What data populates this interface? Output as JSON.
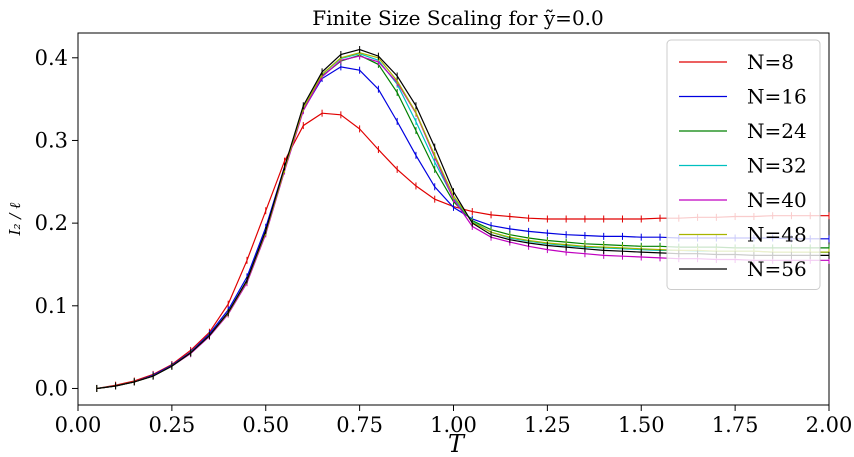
{
  "chart_data": {
    "type": "line",
    "title": "Finite Size Scaling for ỹ=0.0",
    "xlabel": "T",
    "ylabel": "I₂ / ℓ",
    "xlim": [
      0.0,
      2.0
    ],
    "ylim": [
      -0.02,
      0.43
    ],
    "xticks": [
      "0.00",
      "0.25",
      "0.50",
      "0.75",
      "1.00",
      "1.25",
      "1.50",
      "1.75",
      "2.00"
    ],
    "yticks": [
      "0.0",
      "0.1",
      "0.2",
      "0.3",
      "0.4"
    ],
    "legend_position": "upper-right",
    "grid": false,
    "x": [
      0.05,
      0.1,
      0.15,
      0.2,
      0.25,
      0.3,
      0.35,
      0.4,
      0.45,
      0.5,
      0.55,
      0.6,
      0.65,
      0.7,
      0.75,
      0.8,
      0.85,
      0.9,
      0.95,
      1.0,
      1.05,
      1.1,
      1.15,
      1.2,
      1.25,
      1.3,
      1.35,
      1.4,
      1.45,
      1.5,
      1.55,
      1.6,
      1.65,
      1.7,
      1.75,
      1.8,
      1.85,
      1.9,
      1.95,
      2.0
    ],
    "series": [
      {
        "name": "N=8",
        "color": "#e00000",
        "values": [
          0.0,
          0.004,
          0.009,
          0.017,
          0.029,
          0.046,
          0.068,
          0.102,
          0.155,
          0.215,
          0.275,
          0.318,
          0.333,
          0.331,
          0.314,
          0.289,
          0.265,
          0.245,
          0.229,
          0.22,
          0.214,
          0.21,
          0.208,
          0.206,
          0.205,
          0.205,
          0.205,
          0.205,
          0.205,
          0.205,
          0.206,
          0.206,
          0.207,
          0.207,
          0.208,
          0.208,
          0.209,
          0.209,
          0.209,
          0.209
        ]
      },
      {
        "name": "N=16",
        "color": "#0000e0",
        "values": [
          0.0,
          0.003,
          0.008,
          0.016,
          0.028,
          0.044,
          0.066,
          0.095,
          0.135,
          0.195,
          0.268,
          0.337,
          0.375,
          0.389,
          0.385,
          0.362,
          0.323,
          0.282,
          0.244,
          0.219,
          0.205,
          0.197,
          0.193,
          0.19,
          0.188,
          0.186,
          0.185,
          0.184,
          0.184,
          0.183,
          0.183,
          0.182,
          0.182,
          0.182,
          0.182,
          0.182,
          0.182,
          0.181,
          0.181,
          0.181
        ]
      },
      {
        "name": "N=24",
        "color": "#008000",
        "values": [
          0.0,
          0.003,
          0.008,
          0.015,
          0.027,
          0.043,
          0.064,
          0.092,
          0.131,
          0.19,
          0.265,
          0.338,
          0.378,
          0.396,
          0.403,
          0.392,
          0.358,
          0.312,
          0.265,
          0.226,
          0.203,
          0.192,
          0.186,
          0.182,
          0.179,
          0.177,
          0.175,
          0.174,
          0.173,
          0.172,
          0.172,
          0.171,
          0.171,
          0.171,
          0.17,
          0.17,
          0.17,
          0.17,
          0.17,
          0.17
        ]
      },
      {
        "name": "N=32",
        "color": "#00c0c0",
        "values": [
          0.0,
          0.003,
          0.008,
          0.015,
          0.027,
          0.043,
          0.064,
          0.091,
          0.13,
          0.189,
          0.265,
          0.339,
          0.38,
          0.399,
          0.405,
          0.397,
          0.368,
          0.323,
          0.274,
          0.23,
          0.202,
          0.189,
          0.182,
          0.178,
          0.175,
          0.173,
          0.171,
          0.17,
          0.169,
          0.168,
          0.167,
          0.167,
          0.166,
          0.166,
          0.166,
          0.166,
          0.165,
          0.165,
          0.165,
          0.165
        ]
      },
      {
        "name": "N=40",
        "color": "#c000c0",
        "values": [
          0.0,
          0.003,
          0.008,
          0.015,
          0.027,
          0.042,
          0.063,
          0.09,
          0.128,
          0.187,
          0.263,
          0.336,
          0.377,
          0.397,
          0.402,
          0.395,
          0.37,
          0.333,
          0.28,
          0.229,
          0.196,
          0.183,
          0.177,
          0.172,
          0.168,
          0.165,
          0.163,
          0.161,
          0.16,
          0.159,
          0.158,
          0.157,
          0.157,
          0.156,
          0.156,
          0.155,
          0.155,
          0.155,
          0.155,
          0.155
        ]
      },
      {
        "name": "N=48",
        "color": "#a8b400",
        "values": [
          0.0,
          0.003,
          0.008,
          0.015,
          0.027,
          0.043,
          0.064,
          0.091,
          0.13,
          0.189,
          0.265,
          0.339,
          0.38,
          0.4,
          0.406,
          0.4,
          0.372,
          0.334,
          0.282,
          0.233,
          0.201,
          0.189,
          0.183,
          0.179,
          0.176,
          0.174,
          0.172,
          0.171,
          0.17,
          0.169,
          0.168,
          0.167,
          0.167,
          0.166,
          0.166,
          0.166,
          0.165,
          0.165,
          0.165,
          0.165
        ]
      },
      {
        "name": "N=56",
        "color": "#000000",
        "values": [
          0.0,
          0.003,
          0.008,
          0.015,
          0.027,
          0.043,
          0.064,
          0.092,
          0.131,
          0.191,
          0.268,
          0.342,
          0.383,
          0.404,
          0.41,
          0.402,
          0.378,
          0.342,
          0.292,
          0.238,
          0.2,
          0.186,
          0.18,
          0.176,
          0.173,
          0.171,
          0.169,
          0.167,
          0.166,
          0.165,
          0.164,
          0.163,
          0.163,
          0.162,
          0.162,
          0.161,
          0.161,
          0.161,
          0.161,
          0.161
        ]
      }
    ]
  }
}
